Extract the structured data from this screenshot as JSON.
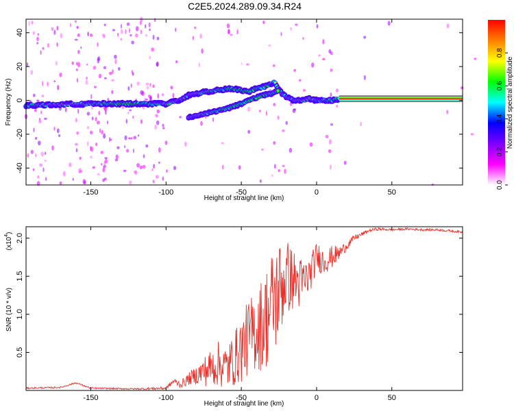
{
  "page_title": "C2E5.2024.289.09.34.R24",
  "colorbar": {
    "label": "Normalized spectral amplitude",
    "ticks": [
      "0.0",
      "0.2",
      "0.4",
      "0.6",
      "0.8"
    ],
    "tick_values": [
      0.0,
      0.2,
      0.4,
      0.6,
      0.8
    ],
    "range": [
      0,
      1
    ],
    "colors": [
      "#ffffff",
      "#ff00ff",
      "#7f00ff",
      "#0000ff",
      "#00ffff",
      "#00ff00",
      "#ffff00",
      "#ff7f00",
      "#ff0000"
    ]
  },
  "chart_data": [
    {
      "type": "heatmap",
      "xlabel": "Height of straight line (km)",
      "ylabel": "Frequency (Hz)",
      "xlim": [
        -193,
        97
      ],
      "ylim": [
        -50,
        48
      ],
      "xticks": [
        -150,
        -100,
        -50,
        0,
        50
      ],
      "yticks": [
        -40,
        -20,
        0,
        20,
        40
      ],
      "ridges": [
        {
          "x": [
            -193,
            -150,
            -120,
            -100,
            -92,
            -85,
            -75,
            -65,
            -55,
            -50,
            -45,
            -40,
            -35,
            -32,
            -28,
            -24,
            -20,
            -15,
            -10,
            -5,
            0,
            5,
            10,
            15,
            97
          ],
          "y": [
            -3,
            -2,
            -2,
            -2,
            0,
            3,
            5,
            6,
            7,
            6,
            5,
            7,
            8,
            9,
            11,
            5,
            2,
            0,
            0,
            1,
            0,
            0,
            0,
            1,
            1
          ]
        },
        {
          "x": [
            -85,
            -80,
            -70,
            -60,
            -50,
            -42,
            -36,
            -30,
            -25
          ],
          "y": [
            -10,
            -9,
            -7,
            -5,
            -2,
            1,
            3,
            4,
            6
          ]
        }
      ]
    },
    {
      "type": "line",
      "xlabel": "Height of straight line (km)",
      "ylabel": "SNR (10 * v/v)",
      "yscale_label": "(x10",
      "yscale_exp": "4",
      "xlim": [
        -193,
        97
      ],
      "ylim": [
        0,
        2.15
      ],
      "xticks": [
        -150,
        -100,
        -50,
        0,
        50
      ],
      "yticks": [
        0.5,
        1.0,
        1.5,
        2.0
      ],
      "ytick_labels": [
        "0.5",
        "1.0",
        "1.5",
        "2.0"
      ],
      "series": [
        {
          "color": "#e8302a",
          "x": [
            -193,
            -170,
            -160,
            -150,
            -120,
            -100,
            -95,
            -90,
            -85,
            -80,
            -75,
            -70,
            -65,
            -60,
            -55,
            -50,
            -45,
            -40,
            -35,
            -30,
            -25,
            -20,
            -15,
            -10,
            -5,
            0,
            5,
            10,
            15,
            20,
            25,
            30,
            35,
            40,
            50,
            60,
            70,
            80,
            97
          ],
          "y": [
            0.03,
            0.04,
            0.1,
            0.03,
            0.02,
            0.03,
            0.12,
            0.08,
            0.15,
            0.2,
            0.25,
            0.3,
            0.35,
            0.3,
            0.4,
            0.55,
            0.7,
            0.8,
            0.9,
            1.1,
            1.3,
            1.5,
            1.45,
            1.4,
            1.5,
            1.75,
            1.7,
            1.75,
            1.8,
            1.9,
            2.0,
            2.05,
            2.1,
            2.12,
            2.11,
            2.12,
            2.11,
            2.11,
            2.08
          ],
          "noise": [
            0.01,
            0.01,
            0.01,
            0.01,
            0.01,
            0.02,
            0.04,
            0.05,
            0.08,
            0.12,
            0.2,
            0.25,
            0.3,
            0.3,
            0.35,
            0.45,
            0.5,
            0.55,
            0.65,
            0.75,
            0.7,
            0.5,
            0.4,
            0.35,
            0.25,
            0.2,
            0.18,
            0.15,
            0.1,
            0.06,
            0.04,
            0.03,
            0.02,
            0.02,
            0.015,
            0.015,
            0.015,
            0.015,
            0.015
          ]
        }
      ]
    }
  ]
}
